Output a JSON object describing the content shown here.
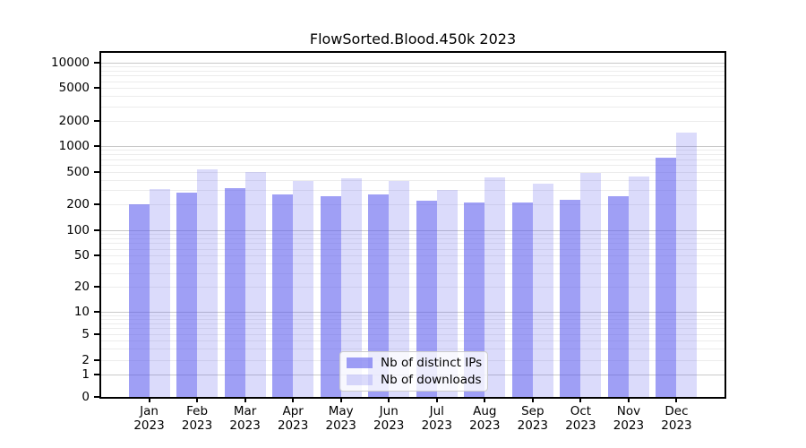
{
  "chart_data": {
    "type": "bar",
    "title": "FlowSorted.Blood.450k 2023",
    "categories": [
      "Jan 2023",
      "Feb 2023",
      "Mar 2023",
      "Apr 2023",
      "May 2023",
      "Jun 2023",
      "Jul 2023",
      "Aug 2023",
      "Sep 2023",
      "Oct 2023",
      "Nov 2023",
      "Dec 2023"
    ],
    "x_tick_line1": [
      "Jan",
      "Feb",
      "Mar",
      "Apr",
      "May",
      "Jun",
      "Jul",
      "Aug",
      "Sep",
      "Oct",
      "Nov",
      "Dec"
    ],
    "x_tick_line2": "2023",
    "series": [
      {
        "name": "Nb of distinct IPs",
        "color": "#5a5aee",
        "opacity": 0.58,
        "hex_over_white": "#a0a0f5",
        "values": [
          200,
          278,
          316,
          265,
          251,
          265,
          221,
          210,
          210,
          227,
          251,
          740
        ]
      },
      {
        "name": "Nb of downloads",
        "color": "#5a5aee",
        "opacity": 0.22,
        "hex_over_white": "#dbdbfa",
        "values": [
          308,
          540,
          505,
          392,
          415,
          386,
          300,
          425,
          362,
          492,
          440,
          1460
        ]
      }
    ],
    "yscale": "symlog",
    "yticks": [
      0,
      1,
      2,
      5,
      10,
      20,
      50,
      100,
      200,
      500,
      1000,
      2000,
      5000,
      10000
    ],
    "ylim": [
      0,
      20000
    ],
    "xlabel": "",
    "ylabel": "",
    "grid": true,
    "legend_position": "lower center",
    "colors": {
      "axis": "#000000",
      "major_grid": "#c9c9c9",
      "minor_grid": "#ececec",
      "legend_border": "#cccccc"
    }
  }
}
